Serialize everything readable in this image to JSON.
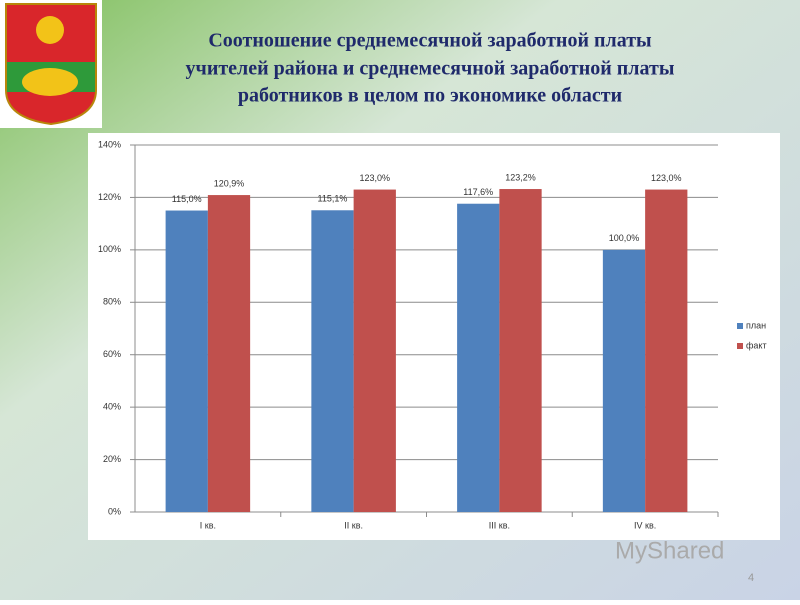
{
  "chart_data": {
    "type": "bar",
    "title": [
      "Соотношение среднемесячной заработной платы",
      "учителей района и среднемесячной заработной платы",
      "работников в целом по экономике области"
    ],
    "categories": [
      "I кв.",
      "II кв.",
      "III кв.",
      "IV кв."
    ],
    "series": [
      {
        "name": "план",
        "color": "#4f81bd",
        "values": [
          115.0,
          115.1,
          117.6,
          100.0
        ],
        "value_labels": [
          "115,0%",
          "115,1%",
          "117,6%",
          "100,0%"
        ]
      },
      {
        "name": "факт",
        "color": "#c0504d",
        "values": [
          120.9,
          123.0,
          123.2,
          123.0
        ],
        "value_labels": [
          "120,9%",
          "123,0%",
          "123,2%",
          "123,0%"
        ]
      }
    ],
    "ylim": [
      0,
      140
    ],
    "yticks": [
      {
        "value": 0,
        "label": "0%"
      },
      {
        "value": 20,
        "label": "20%"
      },
      {
        "value": 40,
        "label": "40%"
      },
      {
        "value": 60,
        "label": "60%"
      },
      {
        "value": 80,
        "label": "80%"
      },
      {
        "value": 100,
        "label": "100%"
      },
      {
        "value": 120,
        "label": "120%"
      },
      {
        "value": 140,
        "label": "140%"
      }
    ],
    "grid": true,
    "legend": "right"
  },
  "watermark": "MyShared",
  "slide_number": "4"
}
